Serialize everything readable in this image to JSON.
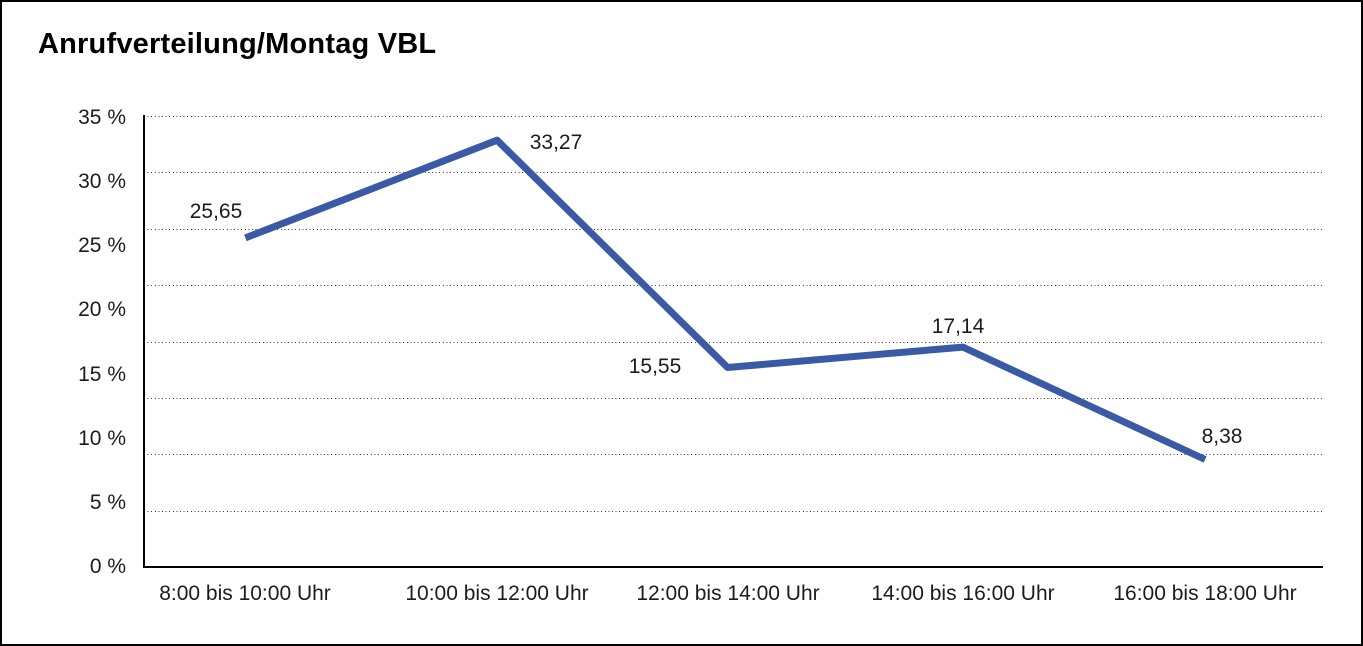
{
  "page": {
    "background": "#ffffff",
    "frame_border_color": "#000000"
  },
  "chart_data": {
    "type": "line",
    "title": "Anrufverteilung/Montag VBL",
    "categories": [
      "8:00 bis 10:00 Uhr",
      "10:00 bis 12:00 Uhr",
      "12:00 bis 14:00 Uhr",
      "14:00 bis 16:00 Uhr",
      "16:00 bis 18:00 Uhr"
    ],
    "values": [
      25.65,
      33.27,
      15.55,
      17.14,
      8.38
    ],
    "value_labels": [
      "25,65",
      "33,27",
      "15,55",
      "17,14",
      "8,38"
    ],
    "xlabel": "",
    "ylabel": "",
    "ylim": [
      0,
      35
    ],
    "yticks": [
      0,
      5,
      10,
      15,
      20,
      25,
      30,
      35
    ],
    "ytick_labels": [
      "0 %",
      "5 %",
      "10 %",
      "15 %",
      "20 %",
      "25 %",
      "30 %",
      "35 %"
    ],
    "grid": "horizontal dotted gridlines, 8 equal intervals over plot height",
    "legend_position": "none",
    "line_color": "#3A5AA5",
    "text_color": "#1c1c1c",
    "axis_color": "#000000",
    "gridline_color": "#3a3a3a"
  }
}
